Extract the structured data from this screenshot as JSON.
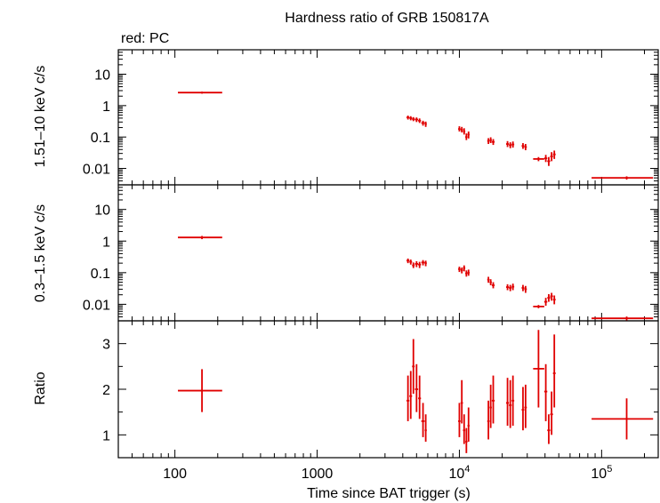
{
  "chart_data": {
    "type": "scatter",
    "title": "Hardness ratio of GRB 150817A",
    "legend": "red: PC",
    "xlabel": "Time since BAT trigger (s)",
    "xscale": "log",
    "xlim": [
      40,
      250000
    ],
    "x_tick_labels": [
      {
        "value": 100,
        "label": "100",
        "sup": ""
      },
      {
        "value": 1000,
        "label": "1000",
        "sup": ""
      },
      {
        "value": 10000,
        "label": "10",
        "sup": "4"
      },
      {
        "value": 100000,
        "label": "10",
        "sup": "5"
      }
    ],
    "panels": [
      {
        "name": "hard",
        "ylabel": "1.51–10 keV c/s",
        "yscale": "log",
        "ylim": [
          0.003,
          60
        ],
        "y_tick_labels": [
          {
            "value": 10,
            "label": "10"
          },
          {
            "value": 1,
            "label": "1"
          },
          {
            "value": 0.1,
            "label": "0.1"
          },
          {
            "value": 0.01,
            "label": "0.01"
          }
        ],
        "points": [
          {
            "x": 155,
            "xlo": 105,
            "xhi": 215,
            "y": 2.6,
            "ylo": 2.4,
            "yhi": 2.8
          },
          {
            "x": 4350,
            "xlo": 4250,
            "xhi": 4450,
            "y": 0.42,
            "ylo": 0.36,
            "yhi": 0.48
          },
          {
            "x": 4550,
            "xlo": 4450,
            "xhi": 4650,
            "y": 0.4,
            "ylo": 0.34,
            "yhi": 0.46
          },
          {
            "x": 4750,
            "xlo": 4650,
            "xhi": 4850,
            "y": 0.37,
            "ylo": 0.32,
            "yhi": 0.43
          },
          {
            "x": 5000,
            "xlo": 4870,
            "xhi": 5130,
            "y": 0.36,
            "ylo": 0.3,
            "yhi": 0.42
          },
          {
            "x": 5250,
            "xlo": 5130,
            "xhi": 5370,
            "y": 0.33,
            "ylo": 0.28,
            "yhi": 0.39
          },
          {
            "x": 5550,
            "xlo": 5400,
            "xhi": 5700,
            "y": 0.28,
            "ylo": 0.23,
            "yhi": 0.33
          },
          {
            "x": 5800,
            "xlo": 5700,
            "xhi": 5900,
            "y": 0.26,
            "ylo": 0.21,
            "yhi": 0.31
          },
          {
            "x": 10000,
            "xlo": 9800,
            "xhi": 10200,
            "y": 0.18,
            "ylo": 0.15,
            "yhi": 0.22
          },
          {
            "x": 10400,
            "xlo": 10200,
            "xhi": 10600,
            "y": 0.17,
            "ylo": 0.14,
            "yhi": 0.21
          },
          {
            "x": 10800,
            "xlo": 10600,
            "xhi": 11000,
            "y": 0.15,
            "ylo": 0.12,
            "yhi": 0.19
          },
          {
            "x": 11200,
            "xlo": 11000,
            "xhi": 11400,
            "y": 0.1,
            "ylo": 0.08,
            "yhi": 0.13
          },
          {
            "x": 11600,
            "xlo": 11400,
            "xhi": 11800,
            "y": 0.12,
            "ylo": 0.09,
            "yhi": 0.15
          },
          {
            "x": 16000,
            "xlo": 15700,
            "xhi": 16300,
            "y": 0.075,
            "ylo": 0.06,
            "yhi": 0.092
          },
          {
            "x": 16600,
            "xlo": 16300,
            "xhi": 16900,
            "y": 0.08,
            "ylo": 0.064,
            "yhi": 0.098
          },
          {
            "x": 17300,
            "xlo": 16900,
            "xhi": 17700,
            "y": 0.07,
            "ylo": 0.056,
            "yhi": 0.086
          },
          {
            "x": 21800,
            "xlo": 21300,
            "xhi": 22300,
            "y": 0.06,
            "ylo": 0.048,
            "yhi": 0.074
          },
          {
            "x": 22800,
            "xlo": 22300,
            "xhi": 23300,
            "y": 0.055,
            "ylo": 0.044,
            "yhi": 0.068
          },
          {
            "x": 23800,
            "xlo": 23300,
            "xhi": 24300,
            "y": 0.058,
            "ylo": 0.046,
            "yhi": 0.072
          },
          {
            "x": 28000,
            "xlo": 27400,
            "xhi": 28600,
            "y": 0.052,
            "ylo": 0.042,
            "yhi": 0.064
          },
          {
            "x": 29200,
            "xlo": 28600,
            "xhi": 29800,
            "y": 0.048,
            "ylo": 0.038,
            "yhi": 0.06
          },
          {
            "x": 36000,
            "xlo": 33000,
            "xhi": 39500,
            "y": 0.02,
            "ylo": 0.017,
            "yhi": 0.023
          },
          {
            "x": 40500,
            "xlo": 39500,
            "xhi": 41500,
            "y": 0.021,
            "ylo": 0.016,
            "yhi": 0.027
          },
          {
            "x": 42500,
            "xlo": 41500,
            "xhi": 43500,
            "y": 0.017,
            "ylo": 0.012,
            "yhi": 0.023
          },
          {
            "x": 44500,
            "xlo": 43500,
            "xhi": 45500,
            "y": 0.024,
            "ylo": 0.017,
            "yhi": 0.033
          },
          {
            "x": 46500,
            "xlo": 45500,
            "xhi": 47500,
            "y": 0.028,
            "ylo": 0.02,
            "yhi": 0.037
          },
          {
            "x": 150000,
            "xlo": 85000,
            "xhi": 230000,
            "y": 0.005,
            "ylo": 0.0044,
            "yhi": 0.0056
          }
        ]
      },
      {
        "name": "soft",
        "ylabel": "0.3–1.5 keV c/s",
        "yscale": "log",
        "ylim": [
          0.003,
          60
        ],
        "y_tick_labels": [
          {
            "value": 10,
            "label": "10"
          },
          {
            "value": 1,
            "label": "1"
          },
          {
            "value": 0.1,
            "label": "0.1"
          },
          {
            "value": 0.01,
            "label": "0.01"
          }
        ],
        "points": [
          {
            "x": 155,
            "xlo": 105,
            "xhi": 215,
            "y": 1.3,
            "ylo": 1.15,
            "yhi": 1.45
          },
          {
            "x": 4350,
            "xlo": 4250,
            "xhi": 4450,
            "y": 0.24,
            "ylo": 0.2,
            "yhi": 0.28
          },
          {
            "x": 4550,
            "xlo": 4450,
            "xhi": 4650,
            "y": 0.22,
            "ylo": 0.18,
            "yhi": 0.26
          },
          {
            "x": 4750,
            "xlo": 4650,
            "xhi": 4850,
            "y": 0.17,
            "ylo": 0.14,
            "yhi": 0.21
          },
          {
            "x": 5000,
            "xlo": 4870,
            "xhi": 5130,
            "y": 0.19,
            "ylo": 0.15,
            "yhi": 0.23
          },
          {
            "x": 5250,
            "xlo": 5130,
            "xhi": 5370,
            "y": 0.18,
            "ylo": 0.14,
            "yhi": 0.22
          },
          {
            "x": 5550,
            "xlo": 5400,
            "xhi": 5700,
            "y": 0.21,
            "ylo": 0.17,
            "yhi": 0.25
          },
          {
            "x": 5800,
            "xlo": 5700,
            "xhi": 5900,
            "y": 0.2,
            "ylo": 0.16,
            "yhi": 0.24
          },
          {
            "x": 10000,
            "xlo": 9800,
            "xhi": 10200,
            "y": 0.13,
            "ylo": 0.105,
            "yhi": 0.155
          },
          {
            "x": 10400,
            "xlo": 10200,
            "xhi": 10600,
            "y": 0.12,
            "ylo": 0.095,
            "yhi": 0.145
          },
          {
            "x": 10800,
            "xlo": 10600,
            "xhi": 11000,
            "y": 0.14,
            "ylo": 0.11,
            "yhi": 0.17
          },
          {
            "x": 11200,
            "xlo": 11000,
            "xhi": 11400,
            "y": 0.095,
            "ylo": 0.075,
            "yhi": 0.118
          },
          {
            "x": 11600,
            "xlo": 11400,
            "xhi": 11800,
            "y": 0.1,
            "ylo": 0.08,
            "yhi": 0.125
          },
          {
            "x": 16000,
            "xlo": 15700,
            "xhi": 16300,
            "y": 0.06,
            "ylo": 0.048,
            "yhi": 0.074
          },
          {
            "x": 16600,
            "xlo": 16300,
            "xhi": 16900,
            "y": 0.05,
            "ylo": 0.04,
            "yhi": 0.062
          },
          {
            "x": 17300,
            "xlo": 16900,
            "xhi": 17700,
            "y": 0.04,
            "ylo": 0.032,
            "yhi": 0.05
          },
          {
            "x": 21800,
            "xlo": 21300,
            "xhi": 22300,
            "y": 0.035,
            "ylo": 0.028,
            "yhi": 0.043
          },
          {
            "x": 22800,
            "xlo": 22300,
            "xhi": 23300,
            "y": 0.033,
            "ylo": 0.026,
            "yhi": 0.041
          },
          {
            "x": 23800,
            "xlo": 23300,
            "xhi": 24300,
            "y": 0.036,
            "ylo": 0.028,
            "yhi": 0.045
          },
          {
            "x": 28000,
            "xlo": 27400,
            "xhi": 28600,
            "y": 0.033,
            "ylo": 0.026,
            "yhi": 0.041
          },
          {
            "x": 29200,
            "xlo": 28600,
            "xhi": 29800,
            "y": 0.03,
            "ylo": 0.023,
            "yhi": 0.038
          },
          {
            "x": 36000,
            "xlo": 33000,
            "xhi": 39500,
            "y": 0.0085,
            "ylo": 0.0075,
            "yhi": 0.0095
          },
          {
            "x": 40500,
            "xlo": 39500,
            "xhi": 41500,
            "y": 0.012,
            "ylo": 0.009,
            "yhi": 0.016
          },
          {
            "x": 42500,
            "xlo": 41500,
            "xhi": 43500,
            "y": 0.016,
            "ylo": 0.012,
            "yhi": 0.021
          },
          {
            "x": 44500,
            "xlo": 43500,
            "xhi": 45500,
            "y": 0.018,
            "ylo": 0.013,
            "yhi": 0.023
          },
          {
            "x": 46500,
            "xlo": 45500,
            "xhi": 47500,
            "y": 0.014,
            "ylo": 0.01,
            "yhi": 0.019
          },
          {
            "x": 150000,
            "xlo": 85000,
            "xhi": 230000,
            "y": 0.0036,
            "ylo": 0.0031,
            "yhi": 0.0041
          }
        ]
      },
      {
        "name": "ratio",
        "ylabel": "Ratio",
        "yscale": "linear",
        "ylim": [
          0.5,
          3.5
        ],
        "y_tick_labels": [
          {
            "value": 3,
            "label": "3"
          },
          {
            "value": 2,
            "label": "2"
          },
          {
            "value": 1,
            "label": "1"
          }
        ],
        "points": [
          {
            "x": 155,
            "xlo": 105,
            "xhi": 215,
            "y": 1.97,
            "ylo": 1.5,
            "yhi": 2.44
          },
          {
            "x": 4350,
            "xlo": 4250,
            "xhi": 4450,
            "y": 1.75,
            "ylo": 1.3,
            "yhi": 2.3
          },
          {
            "x": 4550,
            "xlo": 4450,
            "xhi": 4650,
            "y": 1.85,
            "ylo": 1.35,
            "yhi": 2.4
          },
          {
            "x": 4750,
            "xlo": 4650,
            "xhi": 4850,
            "y": 2.5,
            "ylo": 1.9,
            "yhi": 3.1
          },
          {
            "x": 5000,
            "xlo": 4870,
            "xhi": 5130,
            "y": 2.0,
            "ylo": 1.5,
            "yhi": 2.55
          },
          {
            "x": 5250,
            "xlo": 5130,
            "xhi": 5370,
            "y": 1.8,
            "ylo": 1.35,
            "yhi": 2.3
          },
          {
            "x": 5550,
            "xlo": 5400,
            "xhi": 5700,
            "y": 1.3,
            "ylo": 0.95,
            "yhi": 1.7
          },
          {
            "x": 5800,
            "xlo": 5700,
            "xhi": 5900,
            "y": 1.1,
            "ylo": 0.85,
            "yhi": 1.45
          },
          {
            "x": 10000,
            "xlo": 9800,
            "xhi": 10200,
            "y": 1.3,
            "ylo": 0.95,
            "yhi": 1.7
          },
          {
            "x": 10400,
            "xlo": 10200,
            "xhi": 10600,
            "y": 1.7,
            "ylo": 1.25,
            "yhi": 2.2
          },
          {
            "x": 10800,
            "xlo": 10600,
            "xhi": 11000,
            "y": 1.1,
            "ylo": 0.8,
            "yhi": 1.45
          },
          {
            "x": 11200,
            "xlo": 11000,
            "xhi": 11400,
            "y": 0.85,
            "ylo": 0.6,
            "yhi": 1.15
          },
          {
            "x": 11600,
            "xlo": 11400,
            "xhi": 11800,
            "y": 1.2,
            "ylo": 0.85,
            "yhi": 1.6
          },
          {
            "x": 16000,
            "xlo": 15700,
            "xhi": 16300,
            "y": 1.3,
            "ylo": 0.9,
            "yhi": 1.75
          },
          {
            "x": 16600,
            "xlo": 16300,
            "xhi": 16900,
            "y": 1.6,
            "ylo": 1.15,
            "yhi": 2.1
          },
          {
            "x": 17300,
            "xlo": 16900,
            "xhi": 17700,
            "y": 1.75,
            "ylo": 1.25,
            "yhi": 2.3
          },
          {
            "x": 21800,
            "xlo": 21300,
            "xhi": 22300,
            "y": 1.7,
            "ylo": 1.2,
            "yhi": 2.25
          },
          {
            "x": 22800,
            "xlo": 22300,
            "xhi": 23300,
            "y": 1.65,
            "ylo": 1.15,
            "yhi": 2.2
          },
          {
            "x": 23800,
            "xlo": 23300,
            "xhi": 24300,
            "y": 1.75,
            "ylo": 1.2,
            "yhi": 2.3
          },
          {
            "x": 28000,
            "xlo": 27400,
            "xhi": 28600,
            "y": 1.55,
            "ylo": 1.1,
            "yhi": 2.05
          },
          {
            "x": 29200,
            "xlo": 28600,
            "xhi": 29800,
            "y": 1.6,
            "ylo": 1.15,
            "yhi": 2.1
          },
          {
            "x": 36000,
            "xlo": 33000,
            "xhi": 39500,
            "y": 2.45,
            "ylo": 1.6,
            "yhi": 3.3
          },
          {
            "x": 40500,
            "xlo": 39500,
            "xhi": 41500,
            "y": 1.95,
            "ylo": 1.3,
            "yhi": 2.55
          },
          {
            "x": 42500,
            "xlo": 41500,
            "xhi": 43500,
            "y": 1.1,
            "ylo": 0.8,
            "yhi": 1.45
          },
          {
            "x": 44500,
            "xlo": 43500,
            "xhi": 45500,
            "y": 1.45,
            "ylo": 1.0,
            "yhi": 1.95
          },
          {
            "x": 46500,
            "xlo": 45500,
            "xhi": 47500,
            "y": 2.35,
            "ylo": 1.6,
            "yhi": 3.2
          },
          {
            "x": 150000,
            "xlo": 85000,
            "xhi": 230000,
            "y": 1.35,
            "ylo": 0.9,
            "yhi": 1.8
          }
        ]
      }
    ],
    "series_color": "#e00000"
  }
}
